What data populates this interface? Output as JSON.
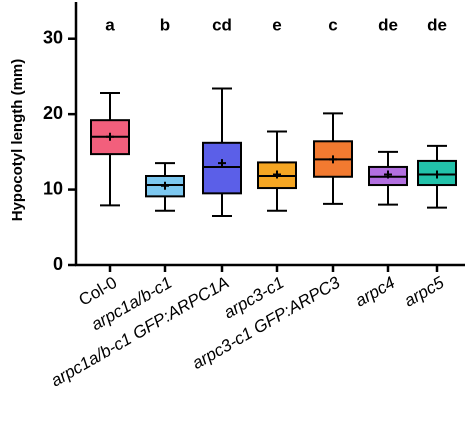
{
  "chart_data": {
    "type": "box",
    "y_label": "Hypocotyl length (mm)",
    "categories": [
      "Col-0",
      "arpc1a/b-c1",
      "arpc1a/b-c1 GFP:ARPC1A",
      "arpc3-c1",
      "arpc3-c1 GFP:ARPC3",
      "arpc4",
      "arpc5"
    ],
    "letters": [
      "a",
      "b",
      "cd",
      "e",
      "c",
      "de",
      "de"
    ],
    "colors": [
      "#f25f7c",
      "#7dc8f0",
      "#5b5fe8",
      "#f5a623",
      "#f27a30",
      "#b26fe0",
      "#22c2aa"
    ],
    "min": [
      7.9,
      7.2,
      6.5,
      7.2,
      8.1,
      8.0,
      7.6
    ],
    "q1": [
      14.7,
      9.1,
      9.5,
      10.2,
      11.7,
      10.6,
      10.6
    ],
    "median": [
      17.0,
      10.6,
      13.0,
      11.8,
      14.0,
      11.7,
      12.0
    ],
    "q3": [
      19.2,
      11.8,
      16.2,
      13.6,
      16.4,
      13.0,
      13.8
    ],
    "max": [
      22.8,
      13.5,
      23.4,
      17.7,
      20.1,
      15.0,
      15.8
    ],
    "mean": [
      17.0,
      10.5,
      13.5,
      12.0,
      14.0,
      12.0,
      12.0
    ],
    "ylim": [
      0,
      35
    ],
    "yticks": [
      0,
      10,
      20,
      30
    ]
  }
}
